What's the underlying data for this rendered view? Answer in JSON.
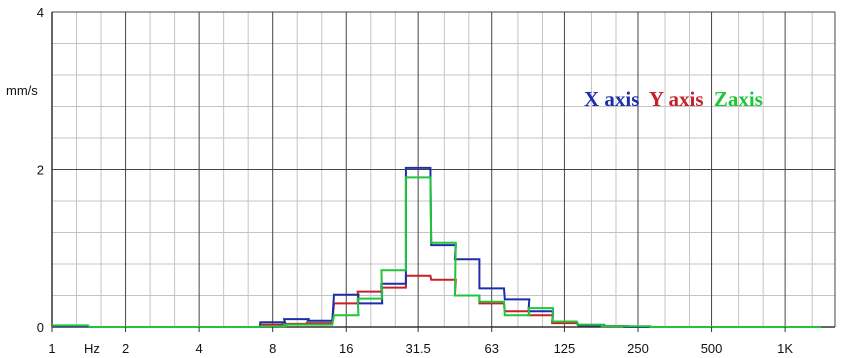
{
  "chart_data": {
    "type": "line",
    "title": "",
    "xlabel": "Hz",
    "ylabel": "mm/s",
    "x_scale": "log",
    "xlim": [
      1,
      1600
    ],
    "ylim": [
      0,
      4
    ],
    "grid": true,
    "legend_position": "top-right",
    "x_tick_labels": [
      "1",
      "2",
      "4",
      "8",
      "16",
      "31.5",
      "63",
      "125",
      "250",
      "500",
      "1K"
    ],
    "x_tick_values": [
      1,
      2,
      4,
      8,
      16,
      31.5,
      63,
      125,
      250,
      500,
      1000
    ],
    "y_tick_labels": [
      "0",
      "2",
      "4"
    ],
    "y_tick_values": [
      0,
      2,
      4
    ],
    "band_centers": [
      1,
      1.25,
      1.6,
      2,
      2.5,
      3.15,
      4,
      5,
      6.3,
      8,
      10,
      12.5,
      16,
      20,
      25,
      31.5,
      40,
      50,
      63,
      80,
      100,
      125,
      160,
      200,
      250,
      315,
      400,
      500,
      630,
      800,
      1000,
      1250
    ],
    "series": [
      {
        "name": "X axis",
        "color": "#1c2fa8",
        "values": [
          0.01,
          0.01,
          0.0,
          0.0,
          0.0,
          0.0,
          0.0,
          0.0,
          0.0,
          0.06,
          0.1,
          0.08,
          0.41,
          0.3,
          0.55,
          2.02,
          1.04,
          0.86,
          0.49,
          0.35,
          0.2,
          0.07,
          0.02,
          0.01,
          0.0,
          0.0,
          0.0,
          0.0,
          0.0,
          0.0,
          0.0,
          0.0
        ]
      },
      {
        "name": "Y axis",
        "color": "#c8202a",
        "values": [
          0.01,
          0.01,
          0.0,
          0.0,
          0.0,
          0.0,
          0.0,
          0.0,
          0.0,
          0.03,
          0.04,
          0.05,
          0.3,
          0.45,
          0.5,
          0.65,
          0.6,
          0.4,
          0.3,
          0.2,
          0.15,
          0.05,
          0.02,
          0.01,
          0.0,
          0.0,
          0.0,
          0.0,
          0.0,
          0.0,
          0.0,
          0.0
        ]
      },
      {
        "name": "Zaxis",
        "color": "#22c43a",
        "values": [
          0.02,
          0.02,
          0.0,
          0.0,
          0.0,
          0.0,
          0.0,
          0.0,
          0.0,
          0.01,
          0.03,
          0.03,
          0.15,
          0.36,
          0.72,
          1.9,
          1.07,
          0.4,
          0.32,
          0.15,
          0.24,
          0.07,
          0.03,
          0.01,
          0.01,
          0.0,
          0.0,
          0.0,
          0.0,
          0.0,
          0.0,
          0.0
        ]
      }
    ]
  }
}
